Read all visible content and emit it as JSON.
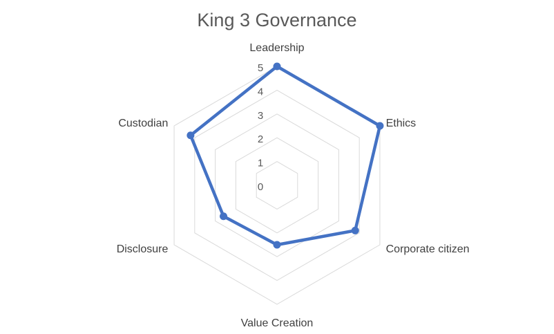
{
  "chart_data": {
    "type": "radar",
    "title": "King 3 Governance",
    "categories": [
      "Leadership",
      "Ethics",
      "Corporate citizen",
      "Value Creation",
      "Disclosure",
      "Custodian"
    ],
    "series": [
      {
        "values": [
          5,
          5,
          3.8,
          2.5,
          2.6,
          4.2
        ]
      }
    ],
    "rlim": [
      0,
      5
    ],
    "ticks": [
      "0",
      "1",
      "2",
      "3",
      "4",
      "5"
    ],
    "grid": true,
    "legend": "none",
    "colors": {
      "series": "#4472C4",
      "grid": "#D9D9D9"
    }
  }
}
